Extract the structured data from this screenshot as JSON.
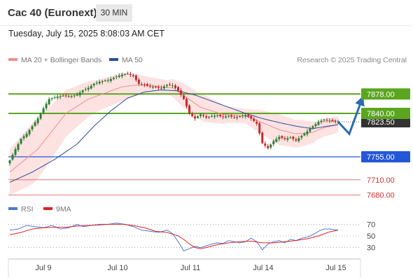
{
  "header": {
    "instrument": "Cac 40 (Euronext)",
    "interval": "30 MIN"
  },
  "timestamp": "Tuesday, July 15, 2025 8:08:03 AM CET",
  "legend": {
    "bollinger_label": "MA 20 + Bollinger Bands",
    "ma50_label": "MA 50"
  },
  "credit": "Research © 2025 Trading Central",
  "rsi_legend": {
    "rsi_label": "RSI",
    "ma_label": "9MA"
  },
  "colors": {
    "candle_up": "#2e7d32",
    "candle_down": "#c62828",
    "bollinger": "#ef8f8f",
    "band_fill": "#fde2e2",
    "ma50": "#2b4c9b",
    "resistance": "#5aa61e",
    "support": "#2456d8",
    "target": "#e06060",
    "rsi": "#4a7bd6",
    "rsi_ma": "#e02020",
    "current_price": "#333333",
    "arrow": "#2b6cb0"
  },
  "chart_data": [
    {
      "type": "candlestick",
      "title": "Cac 40 (Euronext)",
      "interval": "30 MIN",
      "x_labels": [
        "Jul 9",
        "Jul 10",
        "Jul 11",
        "Jul 14",
        "Jul 15"
      ],
      "ylim": [
        7670,
        7925
      ],
      "current_price": 7823.5,
      "current_price_label": "7823.50",
      "levels": [
        {
          "value": 7878.0,
          "label": "7878.00",
          "kind": "resistance"
        },
        {
          "value": 7840.0,
          "label": "7840.00",
          "kind": "resistance"
        },
        {
          "value": 7755.0,
          "label": "7755.00",
          "kind": "support"
        },
        {
          "value": 7710.0,
          "label": "7710.00",
          "kind": "target"
        },
        {
          "value": 7680.0,
          "label": "7680.00",
          "kind": "target"
        }
      ],
      "close_anchors": [
        [
          0,
          7748
        ],
        [
          2,
          7770
        ],
        [
          4,
          7790
        ],
        [
          6,
          7800
        ],
        [
          8,
          7815
        ],
        [
          10,
          7830
        ],
        [
          12,
          7850
        ],
        [
          14,
          7868
        ],
        [
          17,
          7873
        ],
        [
          20,
          7875
        ],
        [
          22,
          7873
        ],
        [
          24,
          7877
        ],
        [
          26,
          7885
        ],
        [
          28,
          7890
        ],
        [
          30,
          7898
        ],
        [
          32,
          7902
        ],
        [
          35,
          7905
        ],
        [
          38,
          7912
        ],
        [
          40,
          7916
        ],
        [
          42,
          7918
        ],
        [
          44,
          7913
        ],
        [
          46,
          7898
        ],
        [
          48,
          7896
        ],
        [
          50,
          7893
        ],
        [
          52,
          7891
        ],
        [
          54,
          7890
        ],
        [
          56,
          7896
        ],
        [
          58,
          7895
        ],
        [
          60,
          7885
        ],
        [
          62,
          7868
        ],
        [
          64,
          7840
        ],
        [
          66,
          7830
        ],
        [
          68,
          7838
        ],
        [
          70,
          7832
        ],
        [
          72,
          7835
        ],
        [
          74,
          7836
        ],
        [
          76,
          7833
        ],
        [
          78,
          7835
        ],
        [
          80,
          7832
        ],
        [
          82,
          7834
        ],
        [
          84,
          7837
        ],
        [
          86,
          7830
        ],
        [
          88,
          7820
        ],
        [
          90,
          7782
        ],
        [
          92,
          7772
        ],
        [
          94,
          7786
        ],
        [
          96,
          7794
        ],
        [
          98,
          7790
        ],
        [
          100,
          7793
        ],
        [
          102,
          7787
        ],
        [
          104,
          7796
        ],
        [
          106,
          7805
        ],
        [
          108,
          7815
        ],
        [
          110,
          7823
        ],
        [
          112,
          7828
        ],
        [
          114,
          7826
        ],
        [
          116,
          7824
        ],
        [
          117,
          7823.5
        ]
      ],
      "ma20_anchors": [
        [
          0,
          7725
        ],
        [
          10,
          7770
        ],
        [
          20,
          7840
        ],
        [
          28,
          7868
        ],
        [
          34,
          7880
        ],
        [
          40,
          7892
        ],
        [
          46,
          7896
        ],
        [
          52,
          7893
        ],
        [
          58,
          7890
        ],
        [
          62,
          7875
        ],
        [
          68,
          7852
        ],
        [
          76,
          7838
        ],
        [
          84,
          7835
        ],
        [
          90,
          7822
        ],
        [
          96,
          7808
        ],
        [
          102,
          7800
        ],
        [
          108,
          7803
        ],
        [
          112,
          7812
        ],
        [
          117,
          7818
        ]
      ],
      "band_width_anchors": [
        [
          0,
          45
        ],
        [
          8,
          60
        ],
        [
          16,
          52
        ],
        [
          24,
          40
        ],
        [
          32,
          30
        ],
        [
          40,
          28
        ],
        [
          48,
          18
        ],
        [
          56,
          14
        ],
        [
          62,
          24
        ],
        [
          70,
          26
        ],
        [
          78,
          16
        ],
        [
          84,
          14
        ],
        [
          90,
          24
        ],
        [
          96,
          30
        ],
        [
          104,
          26
        ],
        [
          110,
          18
        ],
        [
          117,
          16
        ]
      ],
      "ma50_anchors": [
        [
          0,
          7705
        ],
        [
          8,
          7725
        ],
        [
          16,
          7750
        ],
        [
          24,
          7780
        ],
        [
          30,
          7815
        ],
        [
          36,
          7845
        ],
        [
          42,
          7870
        ],
        [
          48,
          7882
        ],
        [
          54,
          7886
        ],
        [
          60,
          7884
        ],
        [
          66,
          7876
        ],
        [
          72,
          7864
        ],
        [
          78,
          7852
        ],
        [
          84,
          7840
        ],
        [
          90,
          7830
        ],
        [
          96,
          7822
        ],
        [
          102,
          7815
        ],
        [
          108,
          7810
        ],
        [
          112,
          7814
        ],
        [
          117,
          7818
        ]
      ],
      "forecast": [
        [
          0,
          7823.5
        ],
        [
          5,
          7800
        ],
        [
          11,
          7872
        ]
      ]
    },
    {
      "type": "line",
      "title": "RSI",
      "ylim": [
        15,
        85
      ],
      "yticks": [
        70,
        50,
        30
      ],
      "series": [
        {
          "name": "RSI",
          "anchors": [
            [
              0,
              60
            ],
            [
              3,
              62
            ],
            [
              6,
              68
            ],
            [
              9,
              66
            ],
            [
              12,
              64
            ],
            [
              15,
              68
            ],
            [
              18,
              62
            ],
            [
              21,
              64
            ],
            [
              24,
              70
            ],
            [
              26,
              66
            ],
            [
              29,
              68
            ],
            [
              32,
              70
            ],
            [
              35,
              70
            ],
            [
              38,
              72
            ],
            [
              41,
              70
            ],
            [
              44,
              66
            ],
            [
              47,
              60
            ],
            [
              50,
              58
            ],
            [
              53,
              56
            ],
            [
              56,
              60
            ],
            [
              58,
              54
            ],
            [
              60,
              40
            ],
            [
              62,
              24
            ],
            [
              64,
              28
            ],
            [
              66,
              32
            ],
            [
              68,
              30
            ],
            [
              70,
              33
            ],
            [
              72,
              36
            ],
            [
              74,
              38
            ],
            [
              76,
              37
            ],
            [
              78,
              42
            ],
            [
              80,
              40
            ],
            [
              82,
              38
            ],
            [
              84,
              40
            ],
            [
              86,
              46
            ],
            [
              88,
              40
            ],
            [
              90,
              26
            ],
            [
              92,
              36
            ],
            [
              94,
              40
            ],
            [
              96,
              42
            ],
            [
              98,
              38
            ],
            [
              100,
              44
            ],
            [
              102,
              42
            ],
            [
              104,
              46
            ],
            [
              106,
              48
            ],
            [
              108,
              52
            ],
            [
              110,
              58
            ],
            [
              112,
              62
            ],
            [
              114,
              62
            ],
            [
              117,
              60
            ]
          ]
        },
        {
          "name": "9MA",
          "anchors": [
            [
              0,
              52
            ],
            [
              4,
              56
            ],
            [
              8,
              62
            ],
            [
              12,
              64
            ],
            [
              16,
              65
            ],
            [
              20,
              65
            ],
            [
              24,
              67
            ],
            [
              28,
              68
            ],
            [
              32,
              69
            ],
            [
              36,
              70
            ],
            [
              40,
              70
            ],
            [
              44,
              68
            ],
            [
              48,
              64
            ],
            [
              52,
              58
            ],
            [
              56,
              56
            ],
            [
              60,
              50
            ],
            [
              62,
              44
            ],
            [
              64,
              36
            ],
            [
              66,
              30
            ],
            [
              68,
              28
            ],
            [
              70,
              30
            ],
            [
              74,
              35
            ],
            [
              78,
              38
            ],
            [
              82,
              40
            ],
            [
              86,
              41
            ],
            [
              90,
              38
            ],
            [
              94,
              38
            ],
            [
              98,
              40
            ],
            [
              102,
              42
            ],
            [
              106,
              45
            ],
            [
              110,
              50
            ],
            [
              114,
              57
            ],
            [
              117,
              60
            ]
          ]
        }
      ]
    }
  ]
}
